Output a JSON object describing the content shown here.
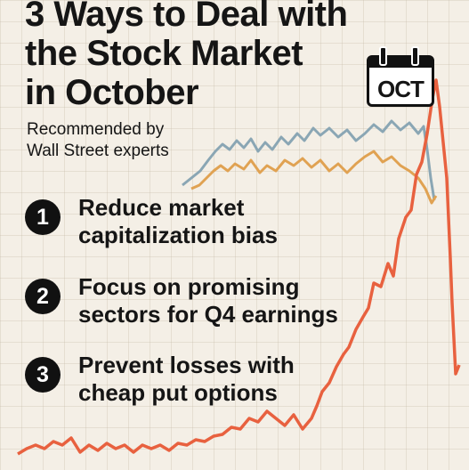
{
  "title": {
    "line1": "3 Ways to Deal with",
    "line2": "the Stock Market",
    "line3": "in October"
  },
  "subtitle": {
    "line1": "Recommended by",
    "line2": "Wall Street experts"
  },
  "calendar": {
    "label": "OCT",
    "icon": "calendar-icon"
  },
  "tips": [
    {
      "number": "1",
      "line1": "Reduce market",
      "line2": "capitalization bias"
    },
    {
      "number": "2",
      "line1": "Focus on promising",
      "line2": "sectors for Q4 earnings"
    },
    {
      "number": "3",
      "line1": "Prevent losses with",
      "line2": "cheap put options"
    }
  ],
  "colors": {
    "background": "#f4efe6",
    "grid": "#d9cfbf",
    "blue_line": "#8aa6b4",
    "amber_line": "#e0a252",
    "red_line": "#e8613f",
    "text": "#151515"
  }
}
